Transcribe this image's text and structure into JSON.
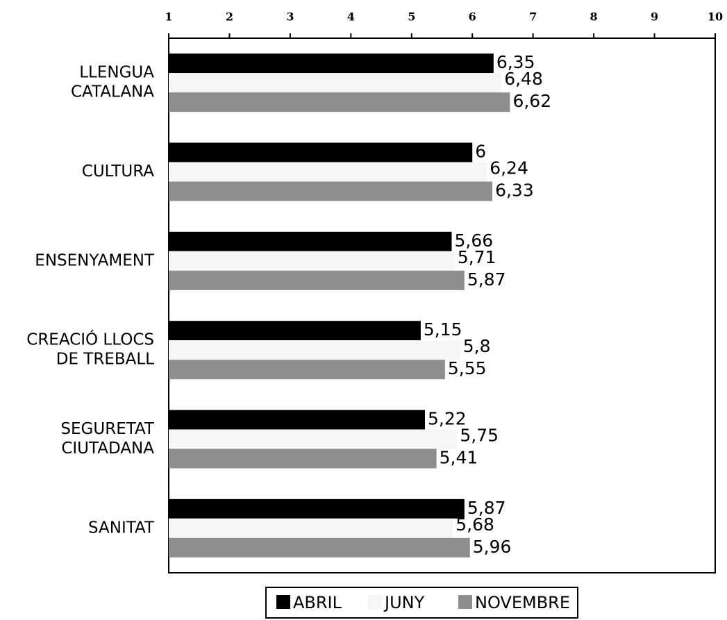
{
  "chart_data": {
    "type": "barh",
    "categories": [
      [
        "LLENGUA",
        "CATALANA"
      ],
      [
        "CULTURA"
      ],
      [
        "ENSENYAMENT"
      ],
      [
        "CREACIÓ LLOCS",
        "DE TREBALL"
      ],
      [
        "SEGURETAT",
        "CIUTADANA"
      ],
      [
        "SANITAT"
      ]
    ],
    "series": [
      {
        "name": "ABRIL",
        "color": "#000000",
        "values": [
          6.35,
          6,
          5.66,
          5.15,
          5.22,
          5.87
        ],
        "value_labels": [
          "6,35",
          "6",
          "5,66",
          "5,15",
          "5,22",
          "5,87"
        ]
      },
      {
        "name": "JUNY",
        "color": "#f6f6f6",
        "values": [
          6.48,
          6.24,
          5.71,
          5.8,
          5.75,
          5.68
        ],
        "value_labels": [
          "6,48",
          "6,24",
          "5,71",
          "5,8",
          "5,75",
          "5,68"
        ]
      },
      {
        "name": "NOVEMBRE",
        "color": "#8e8e8e",
        "values": [
          6.62,
          6.33,
          5.87,
          5.55,
          5.41,
          5.96
        ],
        "value_labels": [
          "6,62",
          "6,33",
          "5,87",
          "5,55",
          "5,41",
          "5,96"
        ]
      }
    ],
    "xlim": [
      1,
      10
    ],
    "xticks": [
      1,
      2,
      3,
      4,
      5,
      6,
      7,
      8,
      9,
      10
    ],
    "legend": "bottom"
  }
}
